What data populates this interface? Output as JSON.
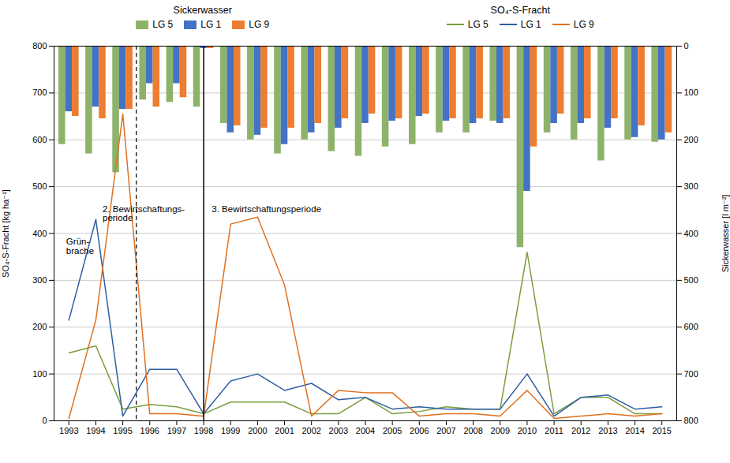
{
  "chart_data": {
    "type": "bar",
    "x": [
      1993,
      1994,
      1995,
      1996,
      1997,
      1998,
      1999,
      2000,
      2001,
      2002,
      2003,
      2004,
      2005,
      2006,
      2007,
      2008,
      2009,
      2010,
      2011,
      2012,
      2013,
      2014,
      2015
    ],
    "xlim": [
      1992.45,
      2015.55
    ],
    "xticks": [
      1993,
      1994,
      1995,
      1996,
      1997,
      1998,
      1999,
      2000,
      2001,
      2002,
      2003,
      2004,
      2005,
      2006,
      2007,
      2008,
      2009,
      2010,
      2011,
      2012,
      2013,
      2014,
      2015
    ],
    "ylabel": "SO₄-S-Fracht [kg ha⁻¹]",
    "y2label": "Sickerwasser [l m⁻²]",
    "ylim": [
      0,
      800
    ],
    "yticks": [
      0,
      100,
      200,
      300,
      400,
      500,
      600,
      700,
      800
    ],
    "y2lim": [
      800,
      0
    ],
    "y2ticks": [
      0,
      100,
      200,
      300,
      400,
      500,
      600,
      700,
      800
    ],
    "grid": true,
    "legend": "top",
    "series": [
      {
        "name": "LG 5",
        "group": "Sickerwasser",
        "type": "bar",
        "axis": "y2",
        "color": "#8db36a",
        "values": [
          210,
          230,
          270,
          115,
          120,
          130,
          165,
          200,
          230,
          200,
          225,
          235,
          215,
          210,
          185,
          185,
          160,
          430,
          185,
          200,
          245,
          200,
          205
        ]
      },
      {
        "name": "LG 1",
        "group": "Sickerwasser",
        "type": "bar",
        "axis": "y2",
        "color": "#4472c4",
        "values": [
          140,
          130,
          135,
          80,
          80,
          5,
          185,
          190,
          210,
          185,
          175,
          165,
          160,
          150,
          160,
          165,
          165,
          310,
          165,
          165,
          175,
          195,
          200
        ]
      },
      {
        "name": "LG 9",
        "group": "Sickerwasser",
        "type": "bar",
        "axis": "y2",
        "color": "#ed7d31",
        "values": [
          150,
          155,
          135,
          130,
          110,
          5,
          170,
          175,
          175,
          165,
          155,
          145,
          155,
          145,
          155,
          155,
          155,
          215,
          145,
          155,
          155,
          170,
          185
        ]
      },
      {
        "name": "LG 5",
        "group": "SO₄-S-Fracht",
        "type": "line",
        "axis": "y",
        "color": "#7a9e3c",
        "values": [
          145,
          160,
          25,
          35,
          30,
          15,
          40,
          40,
          40,
          15,
          15,
          50,
          15,
          20,
          30,
          25,
          25,
          360,
          15,
          50,
          50,
          15,
          15
        ]
      },
      {
        "name": "LG 1",
        "group": "SO₄-S-Fracht",
        "type": "line",
        "axis": "y",
        "color": "#2e5fa3",
        "values": [
          215,
          430,
          10,
          110,
          110,
          15,
          85,
          100,
          65,
          80,
          45,
          50,
          25,
          30,
          25,
          25,
          25,
          100,
          10,
          50,
          55,
          25,
          30
        ]
      },
      {
        "name": "LG 9",
        "group": "SO₄-S-Fracht",
        "type": "line",
        "axis": "y",
        "color": "#e07020",
        "values": [
          5,
          215,
          655,
          15,
          15,
          10,
          420,
          435,
          290,
          10,
          65,
          60,
          60,
          10,
          15,
          15,
          10,
          65,
          5,
          10,
          15,
          10,
          15
        ]
      }
    ],
    "vlines": [
      {
        "x": 1995.5,
        "line_style": "dashed"
      },
      {
        "x": 1998,
        "line_style": "solid"
      }
    ],
    "annotations": [
      {
        "text": "Grün-\nbrache",
        "x": 1992.9,
        "y": 390
      },
      {
        "text": "2. Bewirtschaftungs-\nperiode",
        "x": 1994.25,
        "y": 460
      },
      {
        "text": "3. Bewirtschaftungsperiode",
        "x": 1998.3,
        "y": 460
      }
    ]
  }
}
